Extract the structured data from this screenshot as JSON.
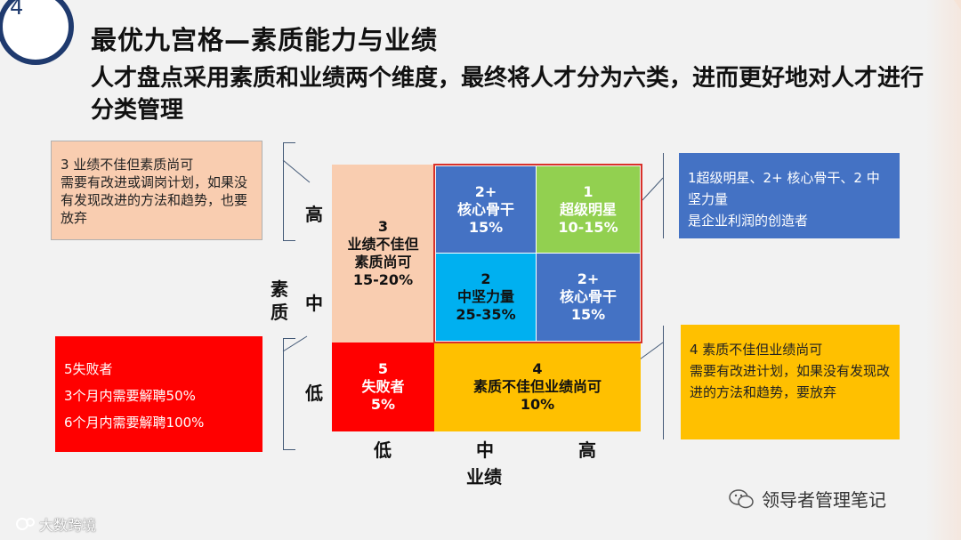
{
  "page": {
    "number": "4",
    "title": "最优九宫格—素质能力与业绩",
    "subtitle": "人才盘点采用素质和业绩两个维度，最终将人才分为六类，进而更好地对人才进行分类管理"
  },
  "notes": {
    "top_left": [
      "3 业绩不佳但素质尚可",
      "需要有改进或调岗计划，如果没有发现改进的方法和趋势，也要放弃"
    ],
    "bottom_left": [
      "5失败者",
      "3个月内需要解聘50%",
      "6个月内需要解聘100%"
    ],
    "top_right": [
      "1超级明星、2+ 核心骨干、2 中坚力量",
      "是企业利润的创造者"
    ],
    "bottom_right": [
      "4 素质不佳但业绩尚可",
      "需要有改进计划，如果没有发现改进的方法和趋势，要放弃"
    ]
  },
  "grid": {
    "cell_3": {
      "num": "3",
      "line1": "业绩不佳但",
      "line2": "素质尚可",
      "pct": "15-20%"
    },
    "cell_5": {
      "num": "5",
      "name": "失败者",
      "pct": "5%"
    },
    "cell_4": {
      "num": "4",
      "name": "素质不佳但业绩尚可",
      "pct": "10%"
    },
    "cell_2plus_top": {
      "num": "2+",
      "name": "核心骨干",
      "pct": "15%"
    },
    "cell_1": {
      "num": "1",
      "name": "超级明星",
      "pct": "10-15%"
    },
    "cell_2": {
      "num": "2",
      "name": "中坚力量",
      "pct": "25-35%"
    },
    "cell_2plus_right": {
      "num": "2+",
      "name": "核心骨干",
      "pct": "15%"
    }
  },
  "axes": {
    "y_title": "素质",
    "y_high": "高",
    "y_mid": "中",
    "y_low": "低",
    "x_title": "业绩",
    "x_low": "低",
    "x_mid": "中",
    "x_high": "高"
  },
  "footer": {
    "left": "大数跨境",
    "right": "领导者管理笔记"
  },
  "colors": {
    "peach": "#f9cdb0",
    "red": "#ff0000",
    "orange": "#ffc000",
    "blue": "#4472c4",
    "green": "#92d050",
    "cyan": "#00b0f0"
  }
}
